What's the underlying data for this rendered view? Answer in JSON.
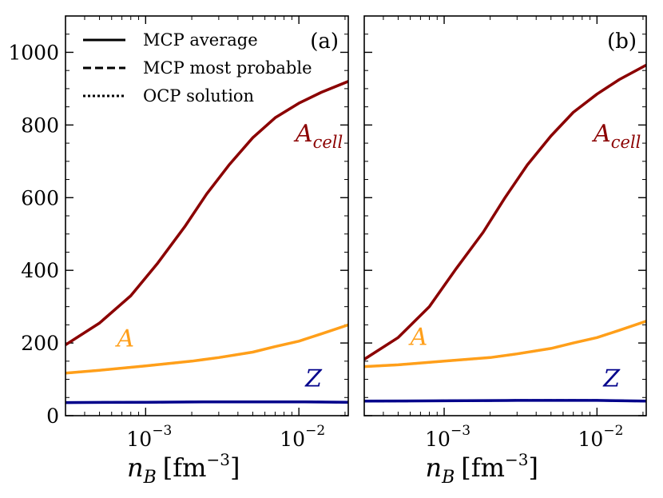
{
  "chart_data": [
    {
      "type": "line",
      "panel_label": "(a)",
      "xlabel": "n_B [fm^-3]",
      "ylabel": "",
      "xscale": "log",
      "xlim": [
        0.0003,
        0.021
      ],
      "ylim": [
        0,
        1100
      ],
      "yticks": [
        0,
        200,
        400,
        600,
        800,
        1000
      ],
      "xticks": [
        0.001,
        0.01
      ],
      "xtick_labels": [
        "10",
        "10"
      ],
      "xtick_exponents": [
        "−3",
        "−2"
      ],
      "legend": {
        "position": "top-left",
        "entries": [
          {
            "label": "MCP average",
            "style": "solid"
          },
          {
            "label": "MCP most probable",
            "style": "dashed"
          },
          {
            "label": "OCP solution",
            "style": "dotted"
          }
        ]
      },
      "series": [
        {
          "name": "A_cell",
          "label": "A",
          "label_sub": "cell",
          "color": "#8b0000",
          "x": [
            0.0003,
            0.0005,
            0.0008,
            0.0012,
            0.0018,
            0.0025,
            0.0035,
            0.005,
            0.007,
            0.01,
            0.014,
            0.021
          ],
          "y": [
            195,
            255,
            330,
            420,
            520,
            610,
            690,
            765,
            820,
            860,
            890,
            920
          ]
        },
        {
          "name": "A",
          "label": "A",
          "label_sub": "",
          "color": "#ff9f1a",
          "x": [
            0.0003,
            0.0005,
            0.001,
            0.002,
            0.003,
            0.005,
            0.007,
            0.01,
            0.014,
            0.021
          ],
          "y": [
            117,
            125,
            137,
            150,
            160,
            175,
            190,
            205,
            225,
            250
          ]
        },
        {
          "name": "Z",
          "label": "Z",
          "label_sub": "",
          "color": "#00008b",
          "x": [
            0.0003,
            0.001,
            0.003,
            0.01,
            0.021
          ],
          "y": [
            36,
            37,
            38,
            38,
            37
          ]
        }
      ]
    },
    {
      "type": "line",
      "panel_label": "(b)",
      "xlabel": "n_B [fm^-3]",
      "ylabel": "",
      "xscale": "log",
      "xlim": [
        0.0003,
        0.021
      ],
      "ylim": [
        0,
        1100
      ],
      "yticks": [
        0,
        200,
        400,
        600,
        800,
        1000
      ],
      "xticks": [
        0.001,
        0.01
      ],
      "xtick_labels": [
        "10",
        "10"
      ],
      "xtick_exponents": [
        "−3",
        "−2"
      ],
      "series": [
        {
          "name": "A_cell",
          "label": "A",
          "label_sub": "cell",
          "color": "#8b0000",
          "x": [
            0.0003,
            0.0005,
            0.0008,
            0.0012,
            0.0018,
            0.0025,
            0.0035,
            0.005,
            0.007,
            0.01,
            0.014,
            0.021
          ],
          "y": [
            155,
            215,
            300,
            405,
            505,
            600,
            690,
            770,
            835,
            885,
            925,
            965
          ]
        },
        {
          "name": "A",
          "label": "A",
          "label_sub": "",
          "color": "#ff9f1a",
          "x": [
            0.0003,
            0.0005,
            0.001,
            0.002,
            0.003,
            0.005,
            0.007,
            0.01,
            0.014,
            0.021
          ],
          "y": [
            135,
            140,
            150,
            160,
            170,
            185,
            200,
            215,
            235,
            260
          ]
        },
        {
          "name": "Z",
          "label": "Z",
          "label_sub": "",
          "color": "#00008b",
          "x": [
            0.0003,
            0.001,
            0.003,
            0.01,
            0.021
          ],
          "y": [
            40,
            41,
            42,
            42,
            40
          ]
        }
      ]
    }
  ]
}
